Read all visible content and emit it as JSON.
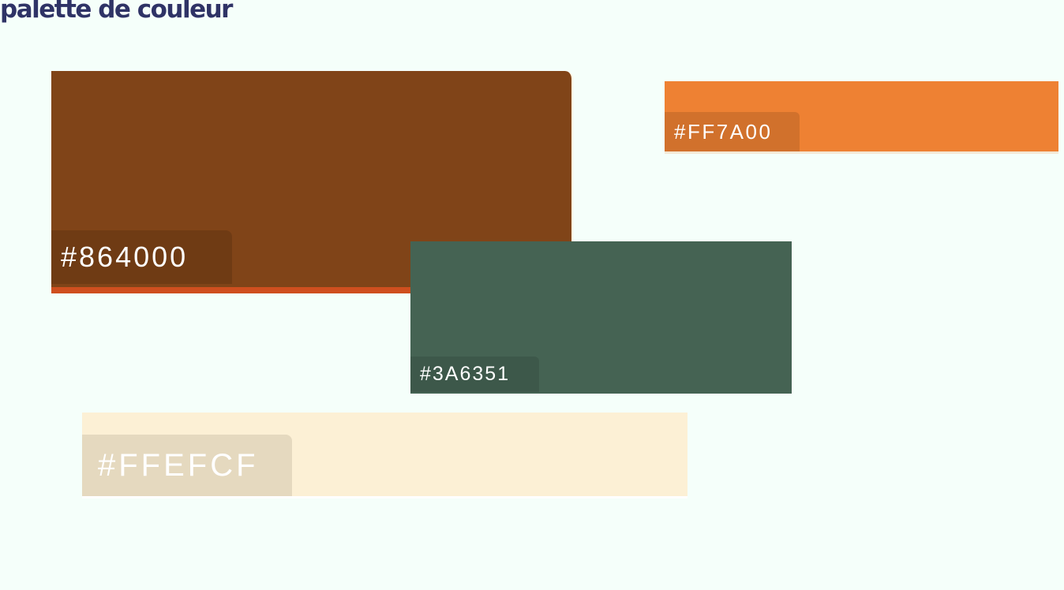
{
  "title": "palette de couleur",
  "swatches": [
    {
      "label": "#864000",
      "color": "#804418"
    },
    {
      "label": "#FF7A00",
      "color": "#ee8133"
    },
    {
      "label": "#3A6351",
      "color": "#456353"
    },
    {
      "label": "#FFEFCF",
      "color": "#fcf0d5"
    }
  ]
}
